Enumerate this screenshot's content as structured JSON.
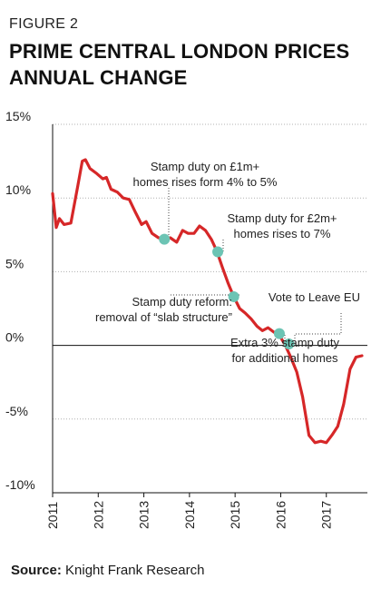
{
  "figure_label": "FIGURE 2",
  "title_line1": "PRIME CENTRAL LONDON PRICES",
  "title_line2": "ANNUAL CHANGE",
  "source_label": "Source:",
  "source_text": "Knight Frank Research",
  "colors": {
    "line": "#d62728",
    "marker": "#6cc4b4",
    "grid": "#b0b0b0",
    "axis": "#111111"
  },
  "chart_data": {
    "type": "line",
    "title": "PRIME CENTRAL LONDON PRICES ANNUAL CHANGE",
    "xlabel": "",
    "ylabel": "",
    "xlim": [
      2011.0,
      2017.9
    ],
    "ylim": [
      -10,
      15
    ],
    "y_ticks": [
      15,
      10,
      5,
      0,
      -5,
      -10
    ],
    "y_tick_labels": [
      "15%",
      "10%",
      "5%",
      "0%",
      "-5%",
      "-10%"
    ],
    "x_ticks": [
      2011,
      2012,
      2013,
      2014,
      2015,
      2016,
      2017
    ],
    "x_tick_labels": [
      "2011",
      "2012",
      "2013",
      "2014",
      "2015",
      "2016",
      "2017"
    ],
    "grid": "horizontal-dotted",
    "series": [
      {
        "x": [
          2011.0,
          2011.08,
          2011.15,
          2011.25,
          2011.4,
          2011.55,
          2011.65,
          2011.72,
          2011.82,
          2011.95,
          2012.1,
          2012.18,
          2012.28,
          2012.42,
          2012.55,
          2012.68,
          2012.82,
          2012.95,
          2013.05,
          2013.18,
          2013.32,
          2013.45,
          2013.58,
          2013.72,
          2013.85,
          2013.97,
          2014.1,
          2014.22,
          2014.35,
          2014.48,
          2014.6,
          2014.72,
          2014.85,
          2014.97,
          2015.1,
          2015.22,
          2015.35,
          2015.48,
          2015.6,
          2015.72,
          2015.85,
          2015.97,
          2016.1,
          2016.22,
          2016.35,
          2016.48,
          2016.62,
          2016.75,
          2016.88,
          2017.0,
          2017.12,
          2017.25,
          2017.38,
          2017.52,
          2017.65,
          2017.78
        ],
        "y": [
          10.3,
          8.0,
          8.6,
          8.2,
          8.3,
          10.8,
          12.5,
          12.6,
          12.0,
          11.7,
          11.3,
          11.4,
          10.6,
          10.4,
          10.0,
          9.9,
          9.0,
          8.2,
          8.4,
          7.6,
          7.3,
          7.2,
          7.3,
          7.0,
          7.8,
          7.6,
          7.6,
          8.1,
          7.8,
          7.2,
          6.4,
          5.3,
          4.2,
          3.3,
          2.5,
          2.2,
          1.8,
          1.3,
          1.0,
          1.2,
          0.9,
          0.7,
          0.0,
          -0.8,
          -1.8,
          -3.5,
          -6.1,
          -6.6,
          -6.5,
          -6.6,
          -6.1,
          -5.5,
          -4.0,
          -1.6,
          -0.8,
          -0.7
        ]
      }
    ],
    "annotations": [
      {
        "lines": [
          "Stamp duty on £1m+",
          "homes rises form 4% to 5%"
        ],
        "x": 2013.45,
        "y": 7.2
      },
      {
        "lines": [
          "Stamp duty for £2m+",
          "homes rises to 7%"
        ],
        "x": 2014.62,
        "y": 6.35
      },
      {
        "lines": [
          "Stamp duty reform:",
          "removal of “slab structure”"
        ],
        "x": 2014.97,
        "y": 3.3
      },
      {
        "lines": [
          "Vote to Leave EU"
        ],
        "x": 2016.18,
        "y": 0.1
      },
      {
        "lines": [
          "Extra 3% stamp duty",
          "for additional homes"
        ],
        "x": 2015.97,
        "y": 0.8
      }
    ]
  }
}
